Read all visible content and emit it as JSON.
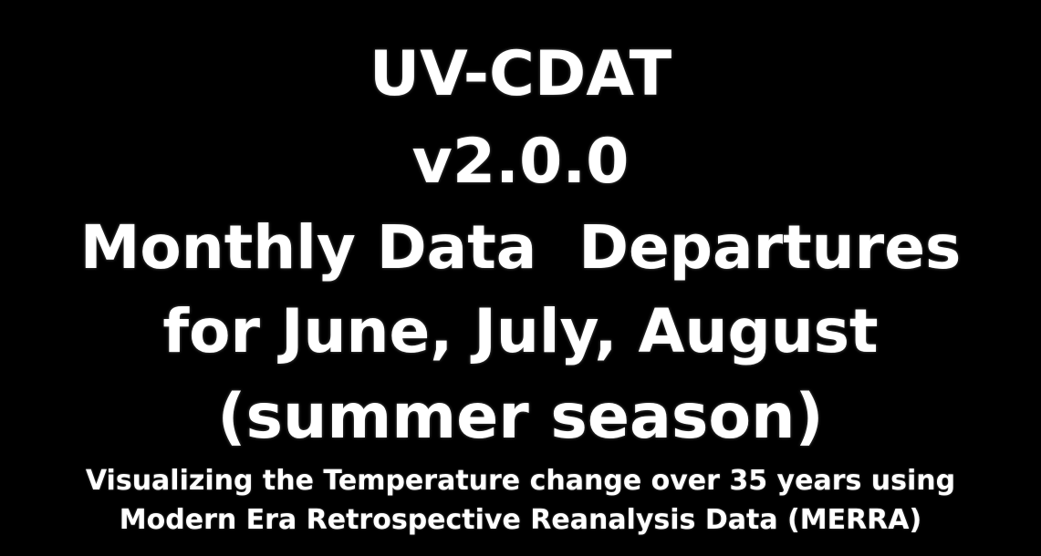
{
  "slide": {
    "title_lines": [
      "UV-CDAT",
      "v2.0.0",
      "Monthly Data  Departures",
      "for June, July, August",
      "(summer season)"
    ],
    "subtitle_lines": [
      "Visualizing the Temperature change over 35 years using",
      "Modern Era Retrospective Reanalysis Data (MERRA)"
    ]
  },
  "colors": {
    "background": "#000000",
    "text": "#ffffff"
  }
}
